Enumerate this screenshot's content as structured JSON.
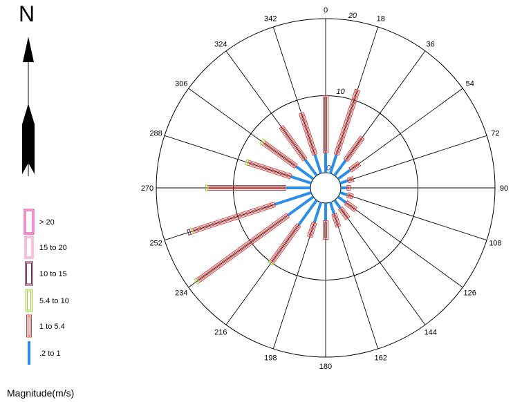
{
  "north_label": "N",
  "legend_title": "Magnitude(m/s)",
  "colors": {
    "background": "#ffffff",
    "grid": "#000000",
    "band_0_2_to_1": "#2b8fe8",
    "band_1_to_5_4": "#e23a3a",
    "band_5_4_to_10": "#9acd32",
    "band_10_to_15": "#7a1f5a",
    "band_15_to_20": "#f080c0",
    "band_gt_20": "#e0208f"
  },
  "chart_data": {
    "type": "rose",
    "radial_axis": {
      "rings": [
        0,
        10,
        20
      ],
      "ring_labels": [
        "0",
        "10",
        "20"
      ]
    },
    "directions": [
      "0",
      "18",
      "36",
      "54",
      "72",
      "90",
      "108",
      "126",
      "144",
      "162",
      "180",
      "198",
      "216",
      "234",
      "252",
      "270",
      "288",
      "306",
      "324",
      "342"
    ],
    "bands": [
      {
        "name": ".2 to 1",
        "color": "#2b8fe8"
      },
      {
        "name": "1 to 5.4",
        "color": "#e23a3a"
      },
      {
        "name": "5.4 to 10",
        "color": "#9acd32"
      },
      {
        "name": "10 to 15",
        "color": "#7a1f5a"
      },
      {
        "name": "15 to 20",
        "color": "#f080c0"
      },
      {
        "name": "> 20",
        "color": "#e0208f"
      }
    ],
    "legend_order": [
      "> 20",
      "15 to 20",
      "10 to 15",
      "5.4 to 10",
      "1 to 5.4",
      ".2 to 1"
    ],
    "petals": [
      {
        "direction": 0,
        "values": [
          2.6,
          7.4,
          0,
          0,
          0,
          0
        ]
      },
      {
        "direction": 18,
        "values": [
          2.6,
          8.8,
          0,
          0,
          0,
          0
        ]
      },
      {
        "direction": 36,
        "values": [
          2.5,
          3.6,
          0,
          0,
          0,
          0
        ]
      },
      {
        "direction": 54,
        "values": [
          2.0,
          1.4,
          0,
          0,
          0,
          0
        ]
      },
      {
        "direction": 72,
        "values": [
          1.1,
          0.7,
          0,
          0,
          0,
          0
        ]
      },
      {
        "direction": 90,
        "values": [
          0.8,
          0.4,
          0,
          0,
          0,
          0
        ]
      },
      {
        "direction": 108,
        "values": [
          1.0,
          0.7,
          0,
          0,
          0,
          0
        ]
      },
      {
        "direction": 126,
        "values": [
          1.3,
          1.5,
          0,
          0,
          0,
          0
        ]
      },
      {
        "direction": 144,
        "values": [
          1.3,
          1.6,
          0,
          0,
          0,
          0
        ]
      },
      {
        "direction": 162,
        "values": [
          1.6,
          1.7,
          0,
          0,
          0,
          0
        ]
      },
      {
        "direction": 180,
        "values": [
          2.3,
          2.4,
          0,
          0,
          0,
          0
        ]
      },
      {
        "direction": 198,
        "values": [
          2.8,
          1.9,
          0,
          0,
          0,
          0
        ]
      },
      {
        "direction": 216,
        "values": [
          4.0,
          6.0,
          0.2,
          0,
          0,
          0
        ]
      },
      {
        "direction": 234,
        "values": [
          4.1,
          14.4,
          0.3,
          0,
          0,
          0
        ]
      },
      {
        "direction": 252,
        "values": [
          5.0,
          11.2,
          0.3,
          0.3,
          0,
          0
        ]
      },
      {
        "direction": 270,
        "values": [
          3.2,
          10.1,
          0.3,
          0,
          0,
          0
        ]
      },
      {
        "direction": 288,
        "values": [
          2.8,
          5.8,
          0.3,
          0,
          0,
          0
        ]
      },
      {
        "direction": 306,
        "values": [
          2.8,
          5.2,
          0.3,
          0,
          0,
          0
        ]
      },
      {
        "direction": 324,
        "values": [
          2.6,
          5.2,
          0,
          0,
          0,
          0
        ]
      },
      {
        "direction": 342,
        "values": [
          2.6,
          5.6,
          0,
          0,
          0,
          0
        ]
      }
    ],
    "grid": true,
    "legend_position": "left"
  }
}
